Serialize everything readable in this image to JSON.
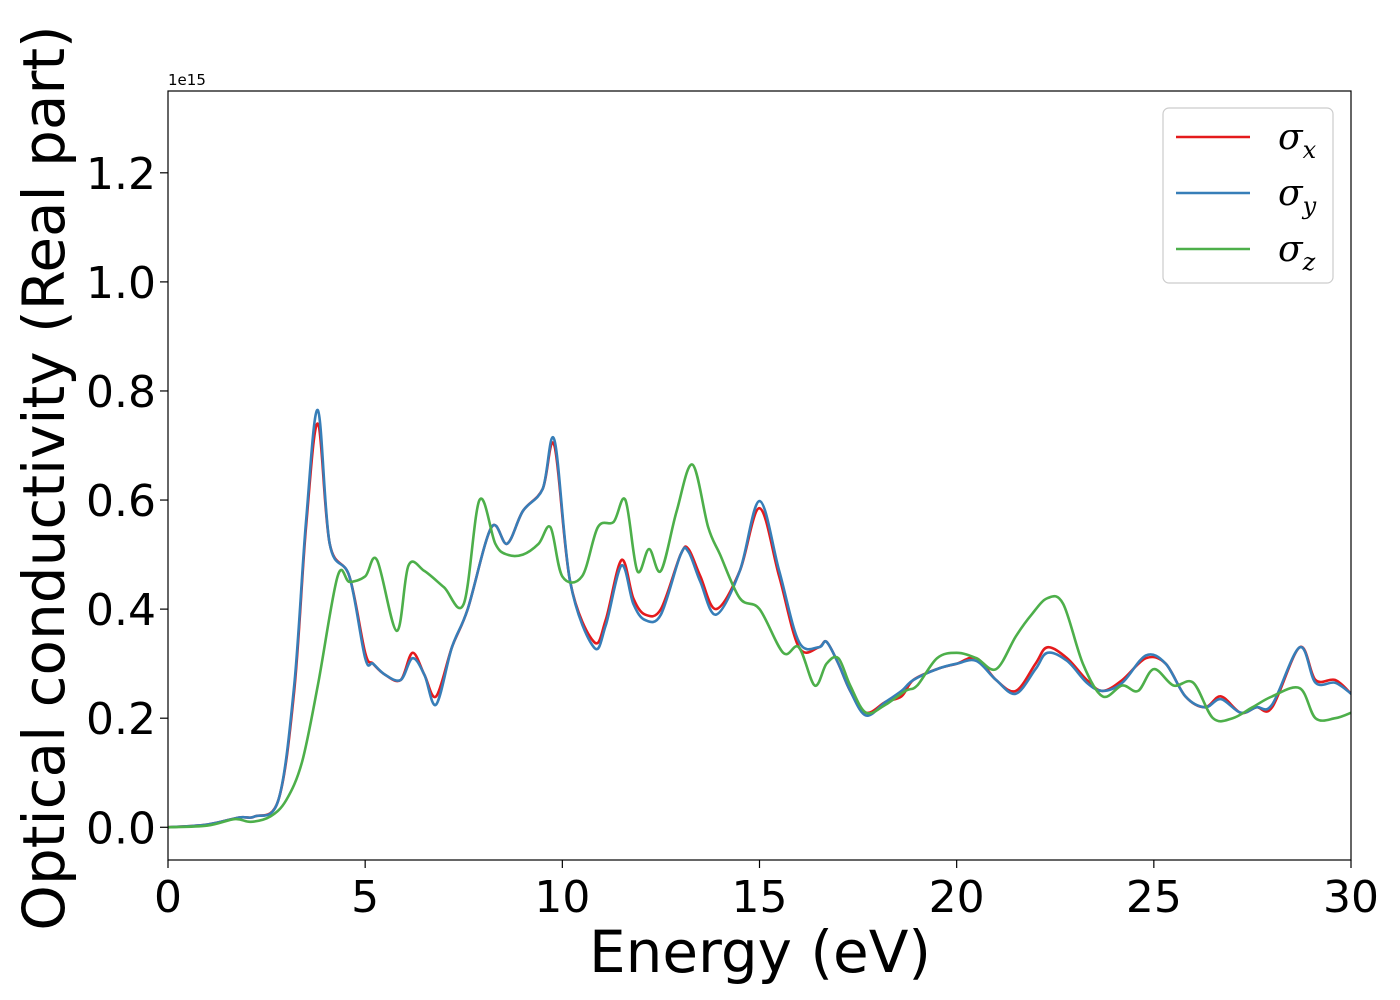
{
  "chart_data": {
    "type": "line",
    "title": "",
    "xlabel": "Energy (eV)",
    "ylabel": "Optical conductivity (Real part)",
    "offset_text": "1e15",
    "xlim": [
      0,
      30
    ],
    "ylim": [
      -0.06,
      1.35
    ],
    "xticks": [
      0,
      5,
      10,
      15,
      20,
      25,
      30
    ],
    "yticks": [
      0.0,
      0.2,
      0.4,
      0.6,
      0.8,
      1.0,
      1.2
    ],
    "xtick_labels": [
      "0",
      "5",
      "10",
      "15",
      "20",
      "25",
      "30"
    ],
    "ytick_labels": [
      "0.0",
      "0.2",
      "0.4",
      "0.6",
      "0.8",
      "1.0",
      "1.2"
    ],
    "grid": false,
    "legend_position": "top-right",
    "series": [
      {
        "name": "σx",
        "symbol": "σ",
        "subscript": "x",
        "color": "#e41a1c",
        "x": [
          0,
          1,
          1.8,
          2.2,
          2.8,
          3.2,
          3.5,
          3.8,
          4.1,
          4.6,
          5.0,
          5.2,
          5.5,
          5.9,
          6.2,
          6.5,
          6.8,
          7.2,
          7.6,
          8.2,
          8.6,
          9.0,
          9.5,
          9.8,
          10.2,
          10.8,
          11.1,
          11.5,
          11.8,
          12.1,
          12.5,
          13.0,
          13.2,
          13.5,
          13.9,
          14.5,
          15.0,
          15.5,
          16.0,
          16.5,
          16.7,
          17.0,
          17.3,
          17.7,
          18.2,
          18.6,
          18.9,
          19.5,
          20.0,
          20.5,
          21.0,
          21.5,
          22.0,
          22.3,
          22.8,
          23.3,
          23.7,
          24.2,
          24.8,
          25.3,
          25.8,
          26.3,
          26.7,
          27.2,
          27.6,
          28.0,
          28.7,
          29.1,
          29.6,
          30
        ],
        "y": [
          0,
          0.005,
          0.018,
          0.02,
          0.05,
          0.25,
          0.55,
          0.74,
          0.52,
          0.46,
          0.32,
          0.3,
          0.28,
          0.27,
          0.32,
          0.28,
          0.24,
          0.33,
          0.4,
          0.55,
          0.52,
          0.58,
          0.62,
          0.7,
          0.45,
          0.34,
          0.38,
          0.49,
          0.42,
          0.39,
          0.4,
          0.5,
          0.51,
          0.46,
          0.4,
          0.47,
          0.585,
          0.46,
          0.33,
          0.33,
          0.34,
          0.3,
          0.25,
          0.21,
          0.23,
          0.24,
          0.27,
          0.29,
          0.3,
          0.31,
          0.27,
          0.25,
          0.3,
          0.33,
          0.31,
          0.27,
          0.25,
          0.27,
          0.31,
          0.3,
          0.24,
          0.22,
          0.24,
          0.21,
          0.22,
          0.22,
          0.33,
          0.27,
          0.27,
          0.245
        ]
      },
      {
        "name": "σy",
        "symbol": "σ",
        "subscript": "y",
        "color": "#377eb8",
        "x": [
          0,
          1,
          1.8,
          2.2,
          2.8,
          3.2,
          3.5,
          3.8,
          4.1,
          4.6,
          5.0,
          5.2,
          5.5,
          5.9,
          6.2,
          6.5,
          6.8,
          7.2,
          7.6,
          8.2,
          8.6,
          9.0,
          9.5,
          9.8,
          10.2,
          10.8,
          11.1,
          11.5,
          11.8,
          12.1,
          12.5,
          13.0,
          13.2,
          13.5,
          13.9,
          14.5,
          15.0,
          15.5,
          16.0,
          16.5,
          16.7,
          17.0,
          17.3,
          17.7,
          18.2,
          18.6,
          18.9,
          19.5,
          20.0,
          20.5,
          21.0,
          21.5,
          22.0,
          22.3,
          22.8,
          23.3,
          23.7,
          24.2,
          24.8,
          25.3,
          25.8,
          26.3,
          26.7,
          27.2,
          27.6,
          28.0,
          28.7,
          29.1,
          29.6,
          30
        ],
        "y": [
          0,
          0.005,
          0.018,
          0.02,
          0.05,
          0.26,
          0.56,
          0.765,
          0.52,
          0.46,
          0.31,
          0.3,
          0.28,
          0.27,
          0.31,
          0.28,
          0.225,
          0.33,
          0.4,
          0.55,
          0.52,
          0.58,
          0.62,
          0.71,
          0.45,
          0.33,
          0.37,
          0.48,
          0.41,
          0.38,
          0.39,
          0.5,
          0.505,
          0.45,
          0.39,
          0.47,
          0.598,
          0.47,
          0.34,
          0.33,
          0.34,
          0.3,
          0.25,
          0.205,
          0.23,
          0.25,
          0.27,
          0.29,
          0.3,
          0.305,
          0.27,
          0.245,
          0.29,
          0.32,
          0.305,
          0.265,
          0.25,
          0.265,
          0.315,
          0.3,
          0.24,
          0.22,
          0.235,
          0.21,
          0.22,
          0.225,
          0.33,
          0.265,
          0.265,
          0.245
        ]
      },
      {
        "name": "σz",
        "symbol": "σ",
        "subscript": "z",
        "color": "#4daf4a",
        "x": [
          0,
          1,
          1.7,
          2.1,
          2.6,
          3.0,
          3.4,
          3.8,
          4.3,
          4.6,
          5.0,
          5.3,
          5.8,
          6.1,
          6.5,
          7.0,
          7.5,
          7.9,
          8.3,
          8.6,
          9.0,
          9.4,
          9.7,
          10.0,
          10.5,
          10.9,
          11.3,
          11.6,
          11.9,
          12.2,
          12.5,
          12.9,
          13.3,
          13.7,
          14.0,
          14.5,
          15.0,
          15.6,
          16.0,
          16.4,
          16.7,
          17.0,
          17.3,
          17.7,
          18.2,
          18.7,
          19.0,
          19.5,
          20.0,
          20.5,
          21.0,
          21.5,
          21.9,
          22.3,
          22.7,
          23.2,
          23.7,
          24.2,
          24.6,
          25.0,
          25.5,
          26.0,
          26.5,
          27.0,
          27.5,
          28.0,
          28.7,
          29.1,
          29.6,
          30
        ],
        "y": [
          0,
          0.003,
          0.015,
          0.01,
          0.02,
          0.05,
          0.12,
          0.26,
          0.46,
          0.45,
          0.46,
          0.49,
          0.36,
          0.48,
          0.47,
          0.44,
          0.41,
          0.6,
          0.52,
          0.5,
          0.5,
          0.52,
          0.55,
          0.46,
          0.46,
          0.55,
          0.56,
          0.6,
          0.47,
          0.51,
          0.47,
          0.58,
          0.665,
          0.55,
          0.5,
          0.42,
          0.4,
          0.32,
          0.33,
          0.26,
          0.3,
          0.31,
          0.26,
          0.21,
          0.225,
          0.25,
          0.26,
          0.31,
          0.32,
          0.31,
          0.29,
          0.35,
          0.39,
          0.42,
          0.41,
          0.3,
          0.24,
          0.26,
          0.25,
          0.29,
          0.26,
          0.265,
          0.2,
          0.2,
          0.22,
          0.24,
          0.255,
          0.2,
          0.2,
          0.21
        ]
      }
    ]
  }
}
